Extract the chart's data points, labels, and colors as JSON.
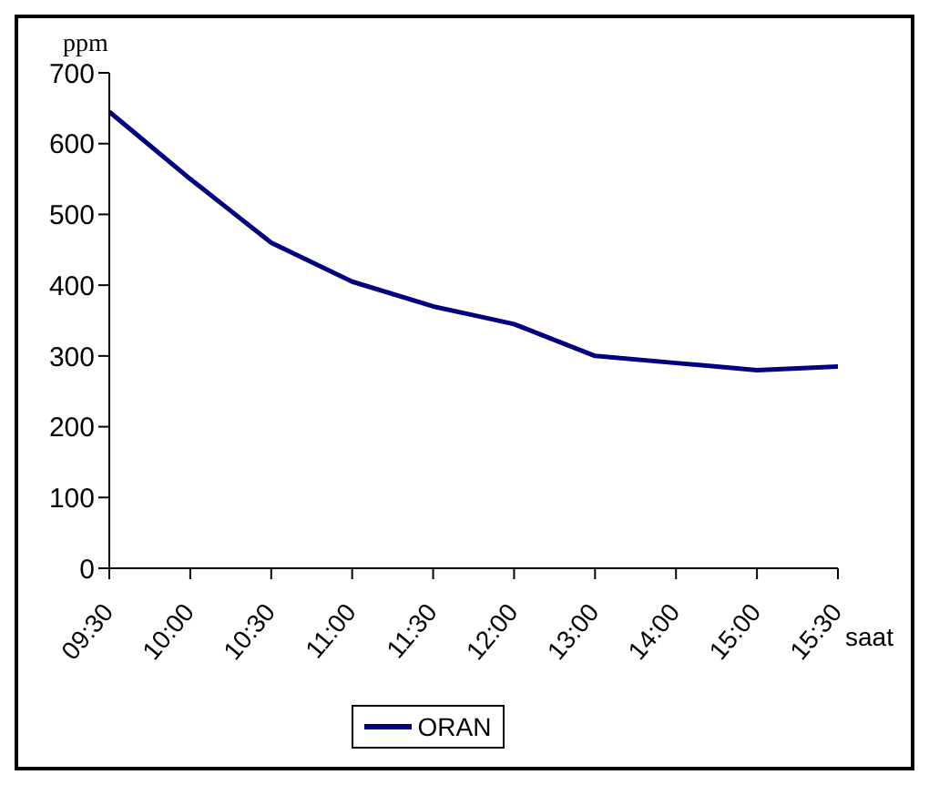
{
  "chart_data": {
    "type": "line",
    "ylabel": "ppm",
    "xlabel": "saat",
    "categories": [
      "09:30",
      "10:00",
      "10:30",
      "11:00",
      "11:30",
      "12:00",
      "13:00",
      "14:00",
      "15:00",
      "15:30"
    ],
    "series": [
      {
        "name": "ORAN",
        "color": "#000080",
        "values": [
          645,
          550,
          460,
          405,
          370,
          345,
          300,
          290,
          280,
          285
        ]
      }
    ],
    "ylim": [
      0,
      700
    ],
    "yticks": [
      0,
      100,
      200,
      300,
      400,
      500,
      600,
      700
    ],
    "legend": "bottom",
    "marker": "none",
    "line_style": "solid"
  }
}
